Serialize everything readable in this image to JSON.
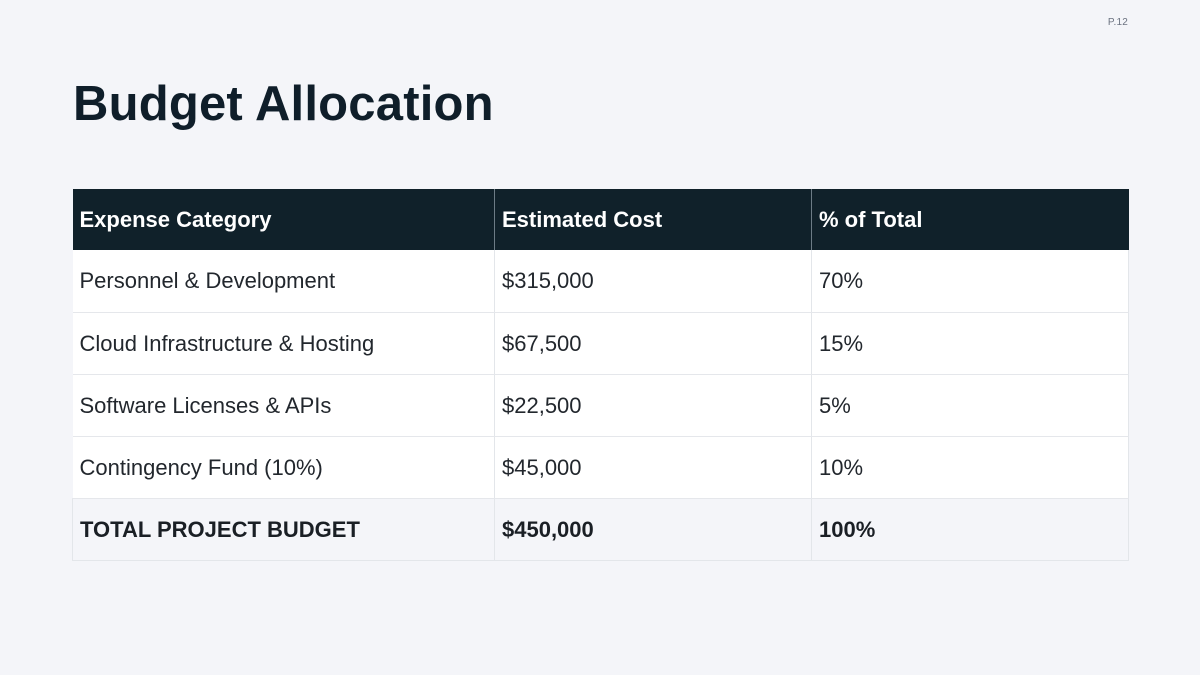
{
  "page": {
    "number": "P.12",
    "title": "Budget Allocation"
  },
  "table": {
    "headers": [
      "Expense Category",
      "Estimated Cost",
      "% of Total"
    ],
    "rows": [
      [
        "Personnel & Development",
        "$315,000",
        "70%"
      ],
      [
        "Cloud Infrastructure & Hosting",
        "$67,500",
        "15%"
      ],
      [
        "Software Licenses & APIs",
        "$22,500",
        "5%"
      ],
      [
        "Contingency Fund (10%)",
        "$45,000",
        "10%"
      ]
    ],
    "total": [
      "TOTAL PROJECT BUDGET",
      "$450,000",
      "100%"
    ]
  },
  "colors": {
    "background": "#f4f5f9",
    "header_bg": "#10212a",
    "title": "#0f1e2a"
  }
}
